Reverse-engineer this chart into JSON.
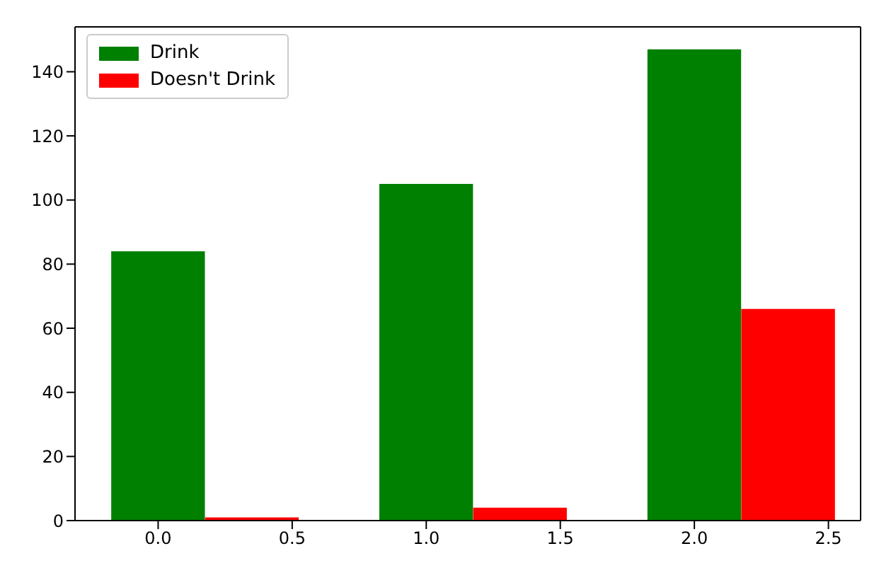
{
  "chart_data": {
    "type": "bar",
    "xlim": [
      -0.31,
      2.62
    ],
    "ylim": [
      0,
      154
    ],
    "xticks": [
      {
        "value": 0,
        "label": "0.0"
      },
      {
        "value": 0.5,
        "label": "0.5"
      },
      {
        "value": 1,
        "label": "1.0"
      },
      {
        "value": 1.5,
        "label": "1.5"
      },
      {
        "value": 2,
        "label": "2.0"
      },
      {
        "value": 2.5,
        "label": "2.5"
      }
    ],
    "yticks": [
      0,
      20,
      40,
      60,
      80,
      100,
      120,
      140
    ],
    "series": [
      {
        "name": "Drink",
        "color": "#008000",
        "x": [
          0,
          1,
          2
        ],
        "values": [
          84,
          105,
          147
        ]
      },
      {
        "name": "Doesn't Drink",
        "color": "#ff0000",
        "x": [
          0.35,
          1.35,
          2.35
        ],
        "values": [
          1,
          4,
          66
        ]
      }
    ],
    "grid": false,
    "legend": "top left"
  }
}
